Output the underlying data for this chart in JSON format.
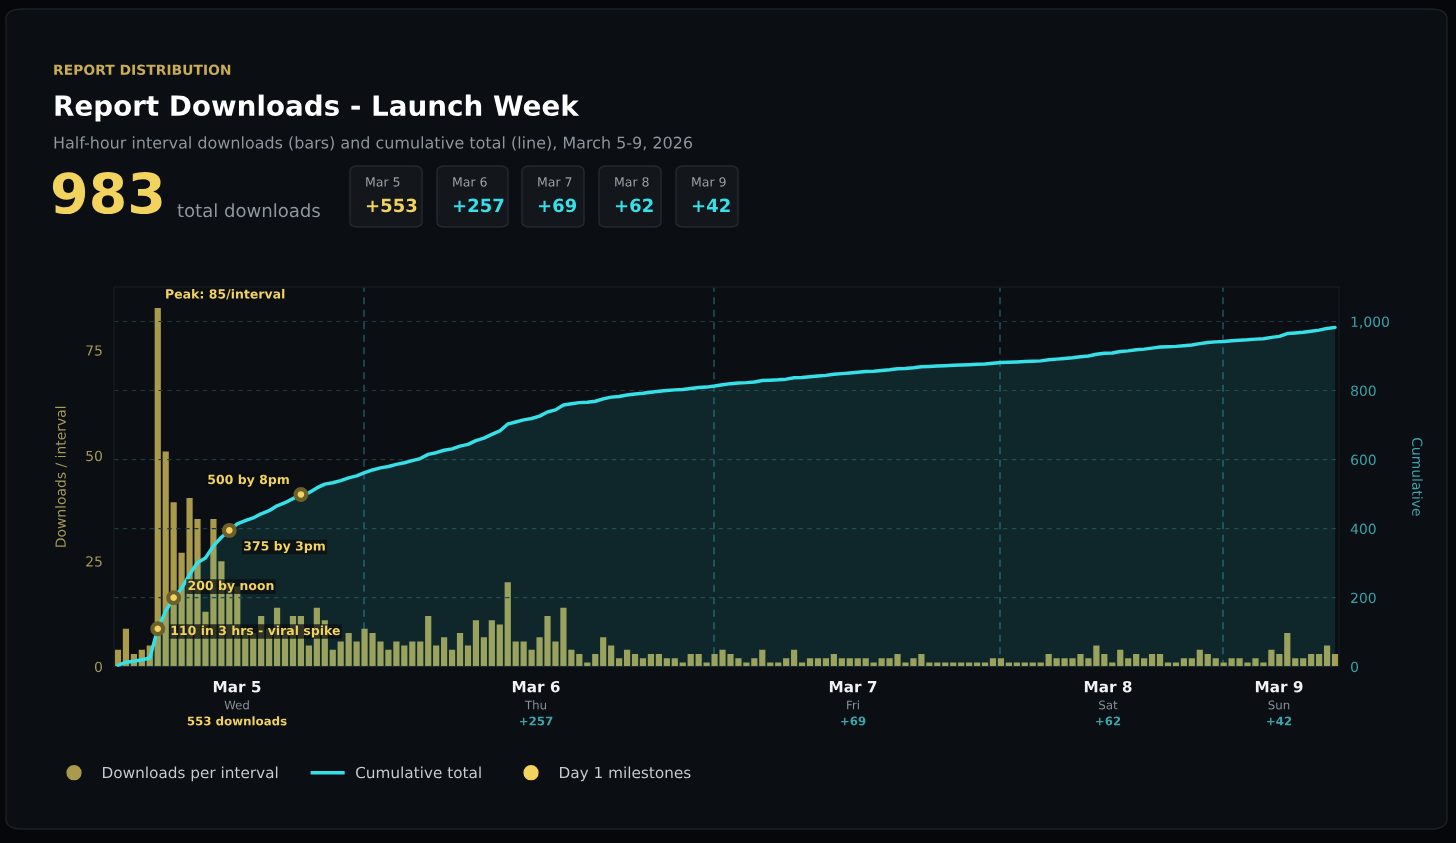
{
  "chart_data": {
    "type": "bar",
    "title": "Report Downloads - Launch Week",
    "subtitle": "Half-hour interval downloads (bars) and cumulative total (line), March 5-9, 2026",
    "ylabel": "Downloads / interval",
    "y2label": "Cumulative",
    "annotations": [
      "REPORT DISTRIBUTION",
      "983",
      "total downloads",
      "Mar 5",
      "+553",
      "Mar 6",
      "+257",
      "Mar 7",
      "+69",
      "Mar 8",
      "+62",
      "Mar 9",
      "+42",
      "Mar 5",
      "Wed",
      "553 downloads",
      "Mar 6",
      "Thu",
      "+257",
      "Mar 7",
      "Fri",
      "+69",
      "Mar 8",
      "Sat",
      "+62",
      "Mar 9",
      "Sun",
      "+42",
      "Peak: 85/interval"
    ],
    "categories": [
      null,
      null,
      null,
      null,
      null,
      null,
      null,
      null,
      null,
      null,
      null,
      null,
      null,
      null,
      null,
      null,
      null,
      null,
      null,
      null,
      null,
      null,
      null,
      null,
      null,
      null,
      null,
      null,
      null,
      null,
      null,
      null,
      null,
      null,
      null,
      null,
      null,
      null,
      null,
      null,
      null,
      null,
      null,
      null,
      null,
      null,
      null,
      null,
      null,
      null,
      null,
      null,
      null,
      null,
      null,
      null,
      null,
      null,
      null,
      null,
      null,
      null,
      null,
      null,
      null,
      null,
      null,
      null,
      null,
      null,
      null,
      null,
      null,
      null,
      null,
      null,
      null,
      null,
      null,
      null,
      null,
      null,
      null,
      null,
      null,
      null,
      null,
      null,
      null,
      null,
      null,
      null,
      null,
      null,
      null,
      null,
      null,
      null,
      null,
      null,
      null,
      null,
      null,
      null,
      null,
      null,
      null,
      null,
      null,
      null,
      null,
      null,
      null,
      null,
      null,
      null,
      null,
      null,
      null,
      null,
      null,
      null,
      null,
      null,
      null,
      null,
      null,
      null,
      null,
      null,
      null,
      null,
      null,
      null,
      null,
      null,
      null,
      null,
      null,
      null,
      null,
      null,
      null,
      null,
      null,
      null,
      null,
      null,
      null,
      null,
      null,
      null,
      null,
      null
    ],
    "series": [
      {
        "name": "Downloads per interval",
        "color": "#a99a4c",
        "values": [
          4,
          9,
          3,
          4,
          5,
          85,
          51,
          39,
          27,
          40,
          35,
          13,
          35,
          25,
          20,
          19,
          9,
          8,
          12,
          9,
          14,
          9,
          12,
          12,
          5,
          14,
          11,
          4,
          6,
          8,
          6,
          9,
          8,
          6,
          4,
          6,
          5,
          6,
          6,
          12,
          5,
          7,
          4,
          8,
          5,
          11,
          7,
          11,
          10,
          20,
          6,
          6,
          4,
          7,
          12,
          6,
          14,
          4,
          3,
          1,
          3,
          7,
          5,
          2,
          4,
          3,
          2,
          3,
          3,
          2,
          2,
          1,
          3,
          3,
          1,
          3,
          4,
          3,
          2,
          1,
          2,
          4,
          1,
          1,
          2,
          4,
          1,
          2,
          2,
          2,
          3,
          2,
          2,
          2,
          2,
          1,
          2,
          2,
          3,
          1,
          2,
          3,
          1,
          1,
          1,
          1,
          1,
          1,
          1,
          1,
          2,
          2,
          1,
          1,
          1,
          1,
          1,
          3,
          2,
          2,
          2,
          3,
          2,
          5,
          3,
          1,
          4,
          2,
          3,
          2,
          3,
          3,
          1,
          1,
          2,
          2,
          4,
          3,
          2,
          1,
          2,
          2,
          1,
          2,
          1,
          4,
          3,
          8,
          2,
          2,
          3,
          3,
          5,
          3
        ]
      },
      {
        "name": "Cumulative total",
        "type": "area",
        "axis": "y2",
        "color": "#35e0e8",
        "values": [
          4,
          13,
          16,
          20,
          25,
          110,
          161,
          200,
          227,
          267,
          302,
          315,
          350,
          375,
          395,
          414,
          423,
          431,
          443,
          452,
          466,
          475,
          487,
          499,
          504,
          518,
          529,
          533,
          539,
          547,
          553,
          562,
          570,
          576,
          580,
          586,
          591,
          597,
          603,
          615,
          620,
          627,
          631,
          639,
          644,
          655,
          662,
          673,
          683,
          703,
          709,
          715,
          719,
          726,
          738,
          744,
          758,
          762,
          765,
          766,
          769,
          776,
          781,
          783,
          787,
          790,
          792,
          795,
          798,
          800,
          802,
          803,
          806,
          809,
          810,
          813,
          817,
          820,
          822,
          823,
          825,
          829,
          830,
          831,
          833,
          837,
          838,
          840,
          842,
          844,
          847,
          849,
          851,
          853,
          855,
          856,
          858,
          860,
          863,
          864,
          866,
          869,
          870,
          871,
          872,
          873,
          874,
          875,
          876,
          877,
          879,
          881,
          882,
          883,
          884,
          885,
          886,
          889,
          891,
          893,
          895,
          898,
          900,
          905,
          908,
          909,
          913,
          915,
          918,
          920,
          923,
          926,
          927,
          928,
          930,
          932,
          936,
          939,
          941,
          942,
          944,
          946,
          947,
          949,
          950,
          954,
          957,
          965,
          967,
          969,
          972,
          975,
          980,
          983
        ]
      },
      {
        "name": "Day 1 milestones",
        "type": "scatter",
        "axis": "y2",
        "color": "#f2d35e",
        "marker": "circle",
        "values": [
          null,
          null,
          null,
          null,
          null,
          110,
          null,
          200,
          null,
          null,
          null,
          null,
          null,
          null,
          395,
          null,
          null,
          null,
          null,
          null,
          null,
          null,
          null,
          499,
          null,
          null,
          null,
          null,
          null,
          null,
          null,
          null,
          null,
          null,
          null,
          null,
          null,
          null,
          null,
          null,
          null,
          null,
          null,
          null,
          null,
          null,
          null,
          null,
          null,
          null,
          null,
          null,
          null,
          null,
          null,
          null,
          null,
          null,
          null,
          null,
          null,
          null,
          null,
          null,
          null,
          null,
          null,
          null,
          null,
          null,
          null,
          null,
          null,
          null,
          null,
          null,
          null,
          null,
          null,
          null,
          null,
          null,
          null,
          null,
          null,
          null,
          null,
          null,
          null,
          null,
          null,
          null,
          null,
          null,
          null,
          null,
          null,
          null,
          null,
          null,
          null,
          null,
          null,
          null,
          null,
          null,
          null,
          null,
          null,
          null,
          null,
          null,
          null,
          null,
          null,
          null,
          null,
          null,
          null,
          null,
          null,
          null,
          null,
          null,
          null,
          null,
          null,
          null,
          null,
          null,
          null,
          null,
          null,
          null,
          null,
          null,
          null,
          null,
          null,
          null,
          null,
          null,
          null,
          null,
          null,
          null,
          null,
          null,
          null,
          null,
          null,
          null,
          null,
          null
        ],
        "value_labels": [
          null,
          null,
          null,
          null,
          null,
          "110 in 3 hrs - viral spike",
          null,
          "200 by noon",
          null,
          null,
          null,
          null,
          null,
          null,
          "375 by 3pm",
          null,
          null,
          null,
          null,
          null,
          null,
          null,
          null,
          "500 by 8pm",
          null,
          null,
          null,
          null,
          null,
          null,
          null,
          null,
          null,
          null,
          null,
          null,
          null,
          null,
          null,
          null,
          null,
          null,
          null,
          null,
          null,
          null,
          null,
          null,
          null,
          null,
          null,
          null,
          null,
          null,
          null,
          null,
          null,
          null,
          null,
          null,
          null,
          null,
          null,
          null,
          null,
          null,
          null,
          null,
          null,
          null,
          null,
          null,
          null,
          null,
          null,
          null,
          null,
          null,
          null,
          null,
          null,
          null,
          null,
          null,
          null,
          null,
          null,
          null,
          null,
          null,
          null,
          null,
          null,
          null,
          null,
          null,
          null,
          null,
          null,
          null,
          null,
          null,
          null,
          null,
          null,
          null,
          null,
          null,
          null,
          null,
          null,
          null,
          null,
          null,
          null,
          null,
          null,
          null,
          null,
          null,
          null,
          null,
          null,
          null,
          null,
          null,
          null,
          null,
          null,
          null,
          null,
          null,
          null,
          null,
          null,
          null,
          null,
          null,
          null,
          null,
          null,
          null,
          null,
          null,
          null,
          null,
          null,
          null,
          null,
          null,
          null,
          null,
          null,
          null
        ]
      }
    ],
    "ylim": [
      0,
      90
    ],
    "yticks": [
      0,
      25,
      50,
      75
    ],
    "y2lim": [
      0,
      1100
    ],
    "y2ticks": [
      0,
      200,
      400,
      600,
      800,
      {
        "value": 1000,
        "label": "1,000"
      }
    ],
    "grid": "y2",
    "legend": "bottom left"
  }
}
